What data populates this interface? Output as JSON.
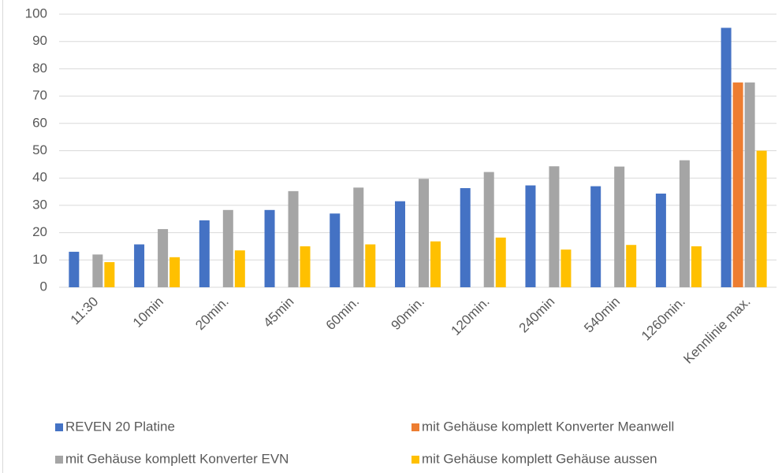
{
  "chart_data": {
    "type": "bar",
    "categories": [
      "11:30",
      "10min",
      "20min.",
      "45min",
      "60min.",
      "90min.",
      "120min.",
      "240min",
      "540min",
      "1260min.",
      "Kennlinie max."
    ],
    "series": [
      {
        "name": "REVEN 20 Platine",
        "color": "#4472c4",
        "values": [
          13,
          15.7,
          24.5,
          28.3,
          27,
          31.5,
          36.3,
          37.3,
          37,
          34.3,
          95
        ]
      },
      {
        "name": "mit Gehäuse komplett Konverter Meanwell",
        "color": "#ed7d31",
        "values": [
          null,
          null,
          null,
          null,
          null,
          null,
          null,
          null,
          null,
          null,
          75
        ]
      },
      {
        "name": "mit Gehäuse komplett Konverter EVN",
        "color": "#a5a5a5",
        "values": [
          12,
          21.3,
          28.3,
          35.2,
          36.5,
          39.7,
          42.2,
          44.3,
          44.2,
          46.5,
          75
        ]
      },
      {
        "name": "mit Gehäuse komplett Gehäuse aussen",
        "color": "#ffc000",
        "values": [
          9.2,
          11,
          13.5,
          15,
          15.7,
          16.8,
          18.2,
          13.8,
          15.5,
          15,
          50
        ]
      }
    ],
    "ylim": [
      0,
      100
    ],
    "yticks": [
      0,
      10,
      20,
      30,
      40,
      50,
      60,
      70,
      80,
      90,
      100
    ],
    "grid": true
  }
}
